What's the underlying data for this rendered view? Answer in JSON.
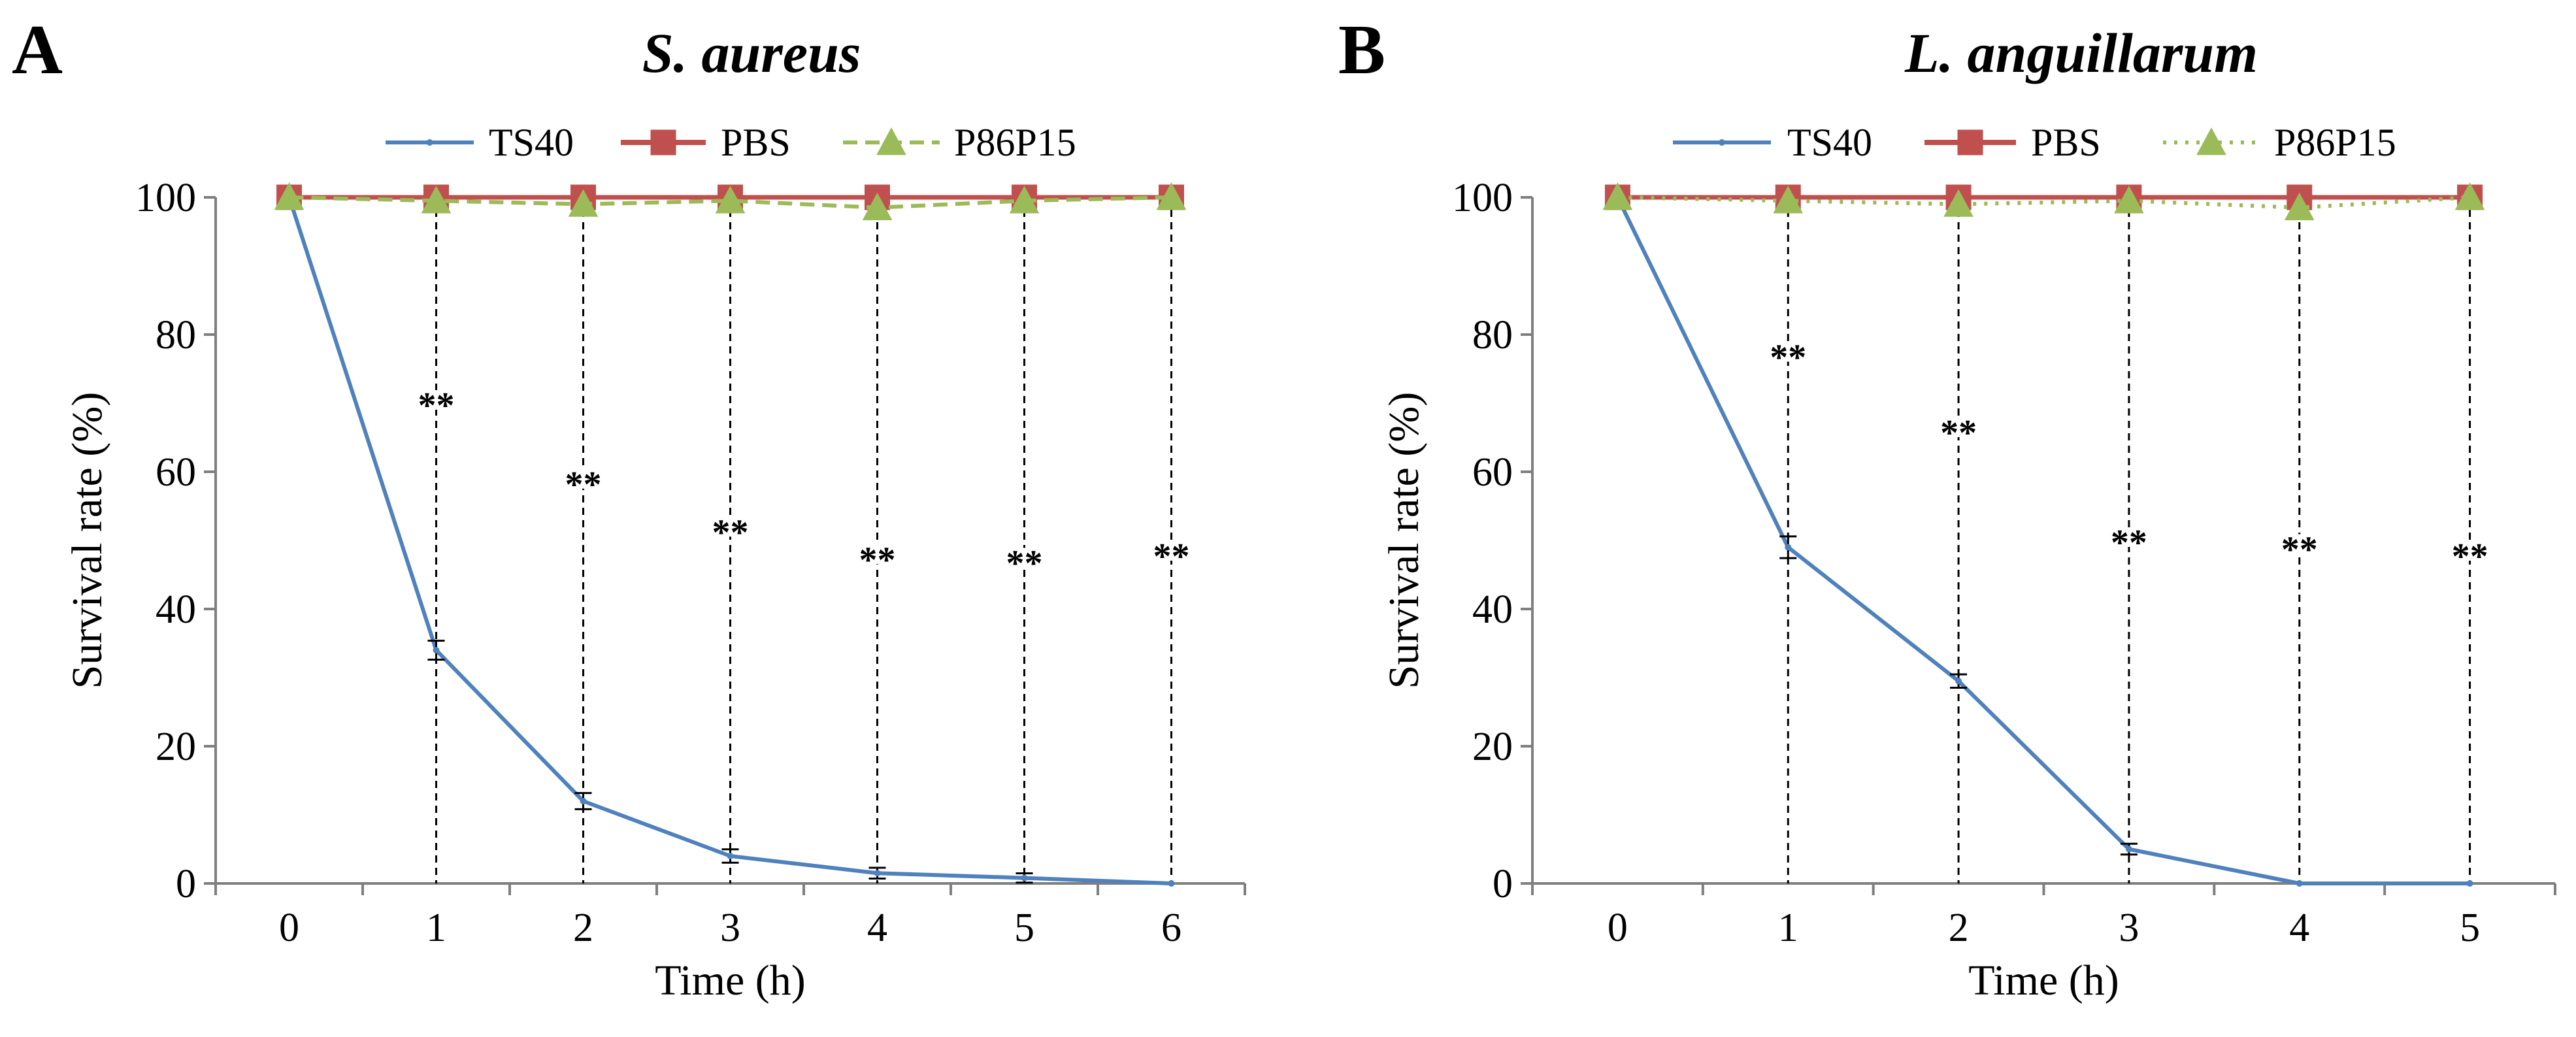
{
  "chart_data": [
    {
      "type": "line",
      "panel_label": "A",
      "title": "S. aureus",
      "xlabel": "Time (h)",
      "ylabel": "Survival rate (%)",
      "ylim": [
        0,
        100
      ],
      "yticks": [
        0,
        20,
        40,
        60,
        80,
        100
      ],
      "categories": [
        "0",
        "1",
        "2",
        "3",
        "4",
        "5",
        "6"
      ],
      "grid": false,
      "legend_position": "top",
      "series": [
        {
          "name": "TS40",
          "color": "#4f81bd",
          "marker": "small-dot",
          "line_style": "solid",
          "values": [
            100,
            34,
            12,
            4,
            1.5,
            0.8,
            0
          ],
          "errors": [
            0,
            1,
            0.8,
            0.6,
            0.4,
            0.3,
            0
          ]
        },
        {
          "name": "PBS",
          "color": "#c0504d",
          "marker": "square",
          "line_style": "solid",
          "values": [
            100,
            100,
            100,
            100,
            100,
            100,
            100
          ]
        },
        {
          "name": "P86P15",
          "color": "#9bbb59",
          "marker": "triangle",
          "line_style": "dashed",
          "values": [
            100,
            99.5,
            99,
            99.5,
            98.5,
            99.5,
            100
          ]
        }
      ],
      "annotations": [
        {
          "x": "1",
          "text": "**",
          "y": 70
        },
        {
          "x": "2",
          "text": "**",
          "y": 58.5
        },
        {
          "x": "3",
          "text": "**",
          "y": 51.5
        },
        {
          "x": "4",
          "text": "**",
          "y": 47.5
        },
        {
          "x": "5",
          "text": "**",
          "y": 47
        },
        {
          "x": "6",
          "text": "**",
          "y": 48
        }
      ]
    },
    {
      "type": "line",
      "panel_label": "B",
      "title": "L. anguillarum",
      "xlabel": "Time (h)",
      "ylabel": "Survival rate (%)",
      "ylim": [
        0,
        100
      ],
      "yticks": [
        0,
        20,
        40,
        60,
        80,
        100
      ],
      "categories": [
        "0",
        "1",
        "2",
        "3",
        "4",
        "5"
      ],
      "grid": false,
      "legend_position": "top",
      "series": [
        {
          "name": "TS40",
          "color": "#4f81bd",
          "marker": "small-dot",
          "line_style": "solid",
          "values": [
            100,
            49,
            29.5,
            5,
            0,
            0
          ],
          "errors": [
            0,
            1.2,
            0.6,
            0.4,
            0,
            0
          ]
        },
        {
          "name": "PBS",
          "color": "#c0504d",
          "marker": "square",
          "line_style": "solid",
          "values": [
            100,
            100,
            100,
            100,
            100,
            100
          ]
        },
        {
          "name": "P86P15",
          "color": "#9bbb59",
          "marker": "triangle",
          "line_style": "dotted",
          "values": [
            100,
            99.5,
            99,
            99.5,
            98.5,
            100
          ]
        }
      ],
      "annotations": [
        {
          "x": "1",
          "text": "**",
          "y": 77
        },
        {
          "x": "2",
          "text": "**",
          "y": 66
        },
        {
          "x": "3",
          "text": "**",
          "y": 50
        },
        {
          "x": "4",
          "text": "**",
          "y": 49
        },
        {
          "x": "5",
          "text": "**",
          "y": 48
        }
      ]
    }
  ]
}
